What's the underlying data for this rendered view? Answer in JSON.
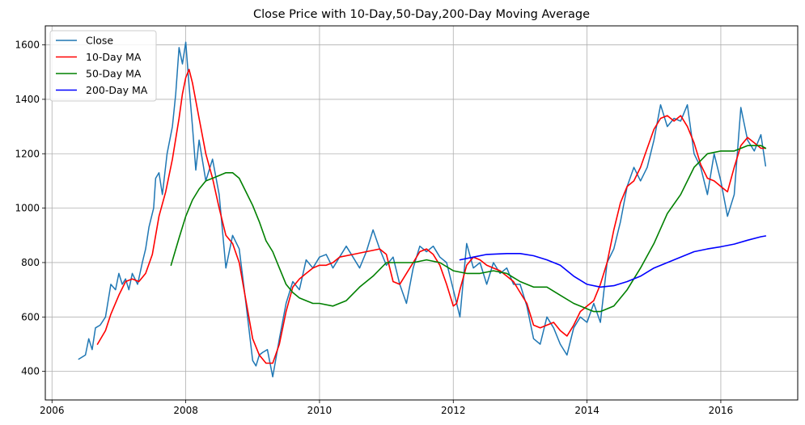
{
  "chart_data": {
    "type": "line",
    "title": "Close Price with 10-Day,50-Day,200-Day Moving Average",
    "xlabel": "",
    "ylabel": "",
    "xlim": [
      2005.9,
      2017.15
    ],
    "ylim": [
      295,
      1670
    ],
    "x_ticks": [
      2006,
      2008,
      2010,
      2012,
      2014,
      2016
    ],
    "y_ticks": [
      400,
      600,
      800,
      1000,
      1200,
      1400,
      1600
    ],
    "grid": true,
    "legend_position": "top-left",
    "series": [
      {
        "name": "Close",
        "color": "#1f77b4",
        "x": [
          2006.4,
          2006.5,
          2006.55,
          2006.6,
          2006.65,
          2006.72,
          2006.8,
          2006.88,
          2006.95,
          2007.0,
          2007.05,
          2007.1,
          2007.15,
          2007.2,
          2007.28,
          2007.35,
          2007.4,
          2007.45,
          2007.52,
          2007.55,
          2007.6,
          2007.65,
          2007.72,
          2007.8,
          2007.85,
          2007.9,
          2007.95,
          2008.0,
          2008.05,
          2008.1,
          2008.15,
          2008.2,
          2008.3,
          2008.4,
          2008.5,
          2008.6,
          2008.7,
          2008.8,
          2008.9,
          2009.0,
          2009.05,
          2009.1,
          2009.15,
          2009.22,
          2009.3,
          2009.4,
          2009.5,
          2009.6,
          2009.7,
          2009.8,
          2009.9,
          2010.0,
          2010.1,
          2010.2,
          2010.3,
          2010.4,
          2010.5,
          2010.6,
          2010.7,
          2010.8,
          2010.9,
          2011.0,
          2011.1,
          2011.2,
          2011.3,
          2011.4,
          2011.5,
          2011.6,
          2011.7,
          2011.8,
          2011.9,
          2012.0,
          2012.1,
          2012.2,
          2012.3,
          2012.4,
          2012.5,
          2012.6,
          2012.7,
          2012.8,
          2012.9,
          2013.0,
          2013.1,
          2013.2,
          2013.3,
          2013.4,
          2013.5,
          2013.6,
          2013.7,
          2013.8,
          2013.9,
          2014.0,
          2014.1,
          2014.2,
          2014.3,
          2014.4,
          2014.5,
          2014.6,
          2014.7,
          2014.8,
          2014.9,
          2015.0,
          2015.1,
          2015.2,
          2015.3,
          2015.4,
          2015.5,
          2015.6,
          2015.7,
          2015.8,
          2015.9,
          2016.0,
          2016.1,
          2016.2,
          2016.3,
          2016.4,
          2016.5,
          2016.6,
          2016.67
        ],
        "values": [
          445,
          460,
          520,
          480,
          560,
          570,
          600,
          720,
          700,
          760,
          720,
          740,
          700,
          760,
          720,
          800,
          850,
          930,
          1000,
          1110,
          1130,
          1050,
          1200,
          1300,
          1420,
          1590,
          1530,
          1610,
          1450,
          1300,
          1140,
          1250,
          1100,
          1180,
          1050,
          780,
          900,
          850,
          650,
          440,
          420,
          460,
          470,
          480,
          380,
          520,
          650,
          730,
          700,
          810,
          780,
          820,
          830,
          780,
          820,
          860,
          820,
          780,
          840,
          920,
          850,
          790,
          820,
          720,
          650,
          780,
          860,
          840,
          860,
          820,
          800,
          700,
          600,
          870,
          780,
          800,
          720,
          800,
          760,
          780,
          720,
          720,
          640,
          520,
          500,
          600,
          560,
          500,
          460,
          560,
          600,
          580,
          650,
          580,
          800,
          850,
          950,
          1080,
          1150,
          1100,
          1150,
          1250,
          1380,
          1300,
          1330,
          1320,
          1380,
          1200,
          1150,
          1050,
          1200,
          1100,
          970,
          1050,
          1370,
          1250,
          1210,
          1270,
          1155
        ]
      },
      {
        "name": "10-Day MA",
        "color": "#ff0000",
        "x": [
          2006.68,
          2006.8,
          2006.88,
          2007.0,
          2007.1,
          2007.2,
          2007.3,
          2007.4,
          2007.5,
          2007.6,
          2007.7,
          2007.8,
          2007.9,
          2007.95,
          2008.0,
          2008.05,
          2008.1,
          2008.2,
          2008.3,
          2008.4,
          2008.5,
          2008.6,
          2008.7,
          2008.8,
          2008.9,
          2009.0,
          2009.1,
          2009.2,
          2009.3,
          2009.4,
          2009.5,
          2009.6,
          2009.7,
          2009.8,
          2009.9,
          2010.0,
          2010.1,
          2010.2,
          2010.3,
          2010.5,
          2010.7,
          2010.9,
          2011.0,
          2011.1,
          2011.2,
          2011.3,
          2011.4,
          2011.5,
          2011.6,
          2011.7,
          2011.8,
          2011.9,
          2012.0,
          2012.05,
          2012.1,
          2012.2,
          2012.3,
          2012.4,
          2012.5,
          2012.6,
          2012.7,
          2012.8,
          2012.9,
          2013.0,
          2013.1,
          2013.2,
          2013.3,
          2013.4,
          2013.5,
          2013.6,
          2013.7,
          2013.8,
          2013.9,
          2014.0,
          2014.1,
          2014.2,
          2014.3,
          2014.4,
          2014.5,
          2014.6,
          2014.7,
          2014.8,
          2014.9,
          2015.0,
          2015.1,
          2015.2,
          2015.3,
          2015.4,
          2015.5,
          2015.6,
          2015.7,
          2015.8,
          2015.9,
          2016.0,
          2016.1,
          2016.2,
          2016.3,
          2016.4,
          2016.5,
          2016.6,
          2016.67
        ],
        "values": [
          500,
          550,
          610,
          680,
          730,
          740,
          730,
          760,
          830,
          970,
          1060,
          1180,
          1330,
          1420,
          1480,
          1510,
          1460,
          1330,
          1200,
          1110,
          1000,
          900,
          870,
          800,
          660,
          520,
          460,
          430,
          430,
          500,
          620,
          710,
          740,
          760,
          780,
          790,
          790,
          800,
          820,
          830,
          840,
          850,
          830,
          730,
          720,
          760,
          800,
          840,
          850,
          830,
          790,
          720,
          640,
          650,
          700,
          790,
          820,
          810,
          790,
          780,
          770,
          750,
          730,
          690,
          650,
          570,
          560,
          570,
          580,
          550,
          530,
          570,
          620,
          640,
          660,
          720,
          800,
          920,
          1020,
          1080,
          1100,
          1150,
          1220,
          1290,
          1330,
          1340,
          1320,
          1340,
          1300,
          1240,
          1160,
          1110,
          1100,
          1080,
          1060,
          1150,
          1230,
          1260,
          1240,
          1220,
          1220
        ]
      },
      {
        "name": "50-Day MA",
        "color": "#008000",
        "x": [
          2007.78,
          2007.9,
          2008.0,
          2008.1,
          2008.2,
          2008.3,
          2008.4,
          2008.5,
          2008.6,
          2008.7,
          2008.8,
          2008.9,
          2009.0,
          2009.1,
          2009.2,
          2009.3,
          2009.4,
          2009.5,
          2009.6,
          2009.7,
          2009.8,
          2009.9,
          2010.0,
          2010.2,
          2010.4,
          2010.6,
          2010.8,
          2011.0,
          2011.2,
          2011.4,
          2011.6,
          2011.8,
          2012.0,
          2012.2,
          2012.4,
          2012.6,
          2012.8,
          2013.0,
          2013.2,
          2013.4,
          2013.6,
          2013.8,
          2014.0,
          2014.1,
          2014.2,
          2014.4,
          2014.6,
          2014.8,
          2015.0,
          2015.2,
          2015.4,
          2015.6,
          2015.8,
          2016.0,
          2016.2,
          2016.4,
          2016.6,
          2016.67
        ],
        "values": [
          790,
          890,
          970,
          1030,
          1070,
          1100,
          1110,
          1120,
          1130,
          1130,
          1110,
          1060,
          1010,
          950,
          880,
          840,
          780,
          720,
          690,
          670,
          660,
          650,
          650,
          640,
          660,
          710,
          750,
          800,
          800,
          800,
          810,
          800,
          770,
          760,
          760,
          770,
          760,
          730,
          710,
          710,
          680,
          650,
          630,
          620,
          620,
          640,
          700,
          780,
          870,
          980,
          1050,
          1150,
          1200,
          1210,
          1210,
          1230,
          1230,
          1220
        ]
      },
      {
        "name": "200-Day MA",
        "color": "#0000ff",
        "x": [
          2012.1,
          2012.3,
          2012.5,
          2012.8,
          2013.0,
          2013.2,
          2013.4,
          2013.6,
          2013.8,
          2014.0,
          2014.2,
          2014.4,
          2014.6,
          2014.8,
          2015.0,
          2015.2,
          2015.4,
          2015.6,
          2015.8,
          2016.0,
          2016.2,
          2016.4,
          2016.6,
          2016.67
        ],
        "values": [
          810,
          820,
          830,
          833,
          833,
          825,
          810,
          790,
          750,
          720,
          710,
          715,
          730,
          750,
          780,
          800,
          820,
          840,
          850,
          858,
          868,
          882,
          895,
          898
        ]
      }
    ]
  }
}
